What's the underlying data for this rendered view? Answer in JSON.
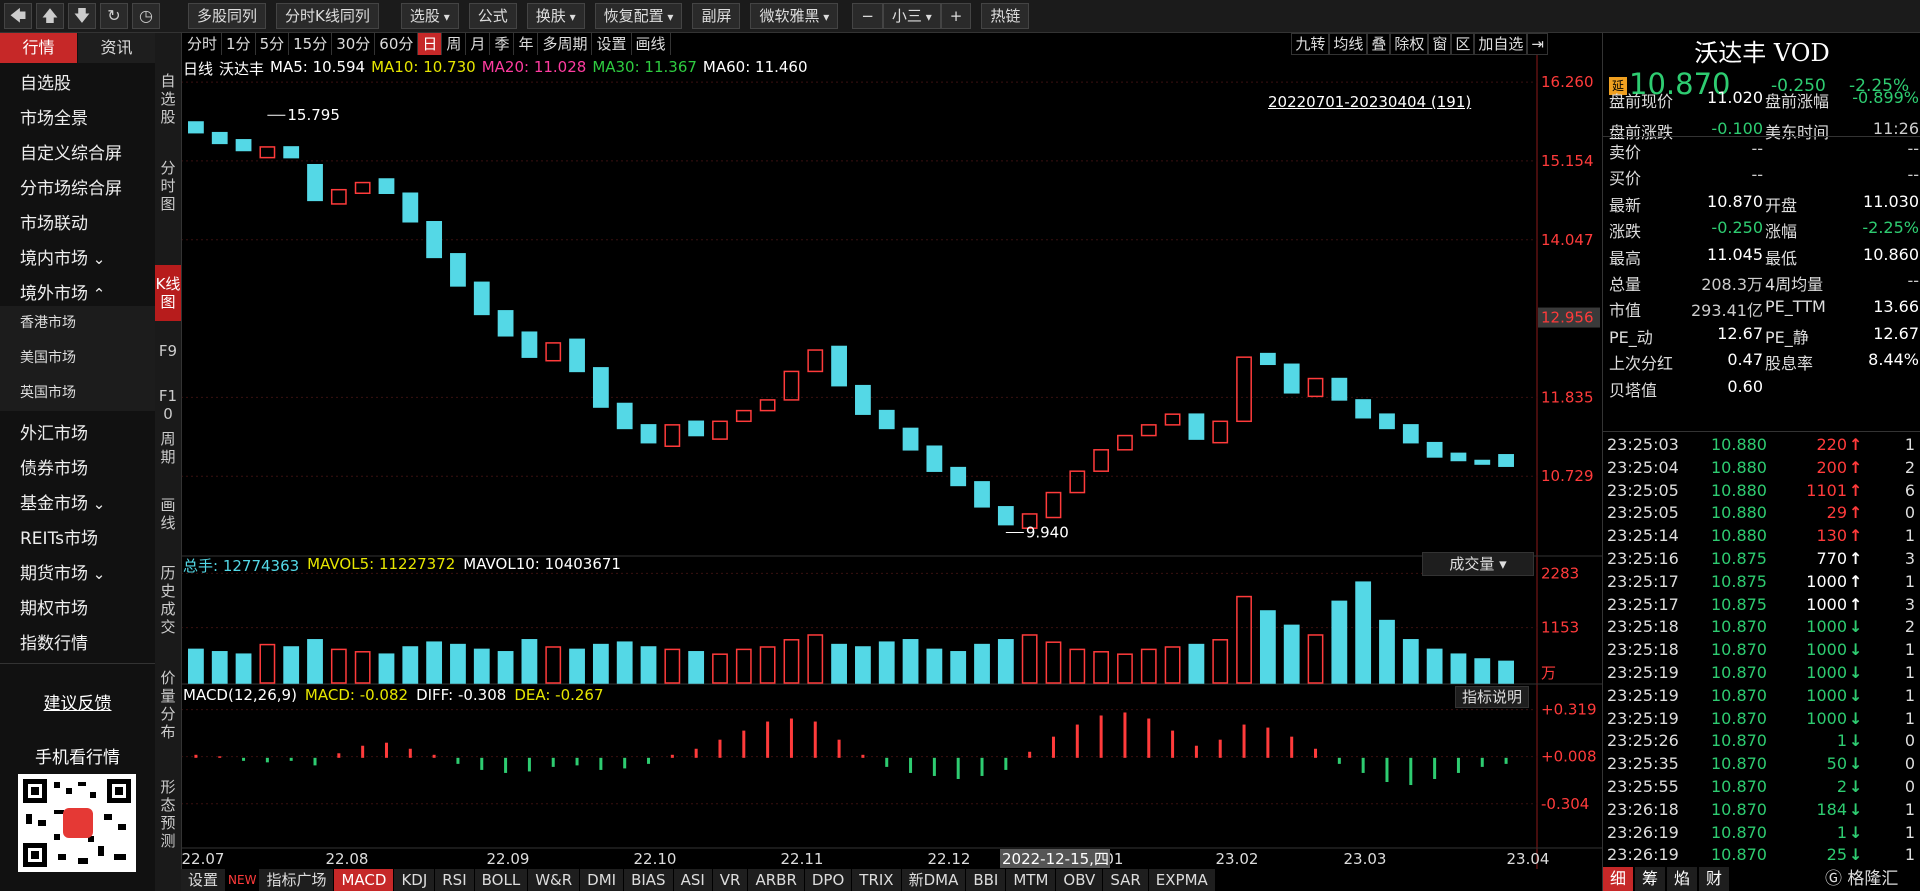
{
  "toolbar": [
    "多股同列",
    "分时K线同列",
    "选股",
    "公式",
    "换肤",
    "恢复配置",
    "副屏",
    "微软雅黑",
    "小三",
    "热链"
  ],
  "nav_tabs": [
    "行情",
    "资讯"
  ],
  "nav": [
    "自选股",
    "市场全景",
    "自定义综合屏",
    "分市场综合屏",
    "市场联动",
    "境内市场",
    "境外市场",
    "香港市场",
    "美国市场",
    "英国市场",
    "外汇市场",
    "债券市场",
    "基金市场",
    "REITs市场",
    "期货市场",
    "期权市场",
    "指数行情"
  ],
  "feedback": "建议反馈",
  "mobile": "手机看行情",
  "side_tabs": [
    "自选股",
    "分时图",
    "K线图",
    "F9",
    "F10",
    "周期",
    "画线",
    "历史成交",
    "价量分布",
    "形态预测"
  ],
  "periods": [
    "分时",
    "1分",
    "5分",
    "15分",
    "30分",
    "60分",
    "日",
    "周",
    "月",
    "季",
    "年",
    "多周期",
    "设置",
    "画线"
  ],
  "tools": [
    "九转",
    "均线",
    "叠",
    "除权",
    "窗",
    "区",
    "加自选"
  ],
  "ma_legend": [
    {
      "text": "日线",
      "color": "#ffffff"
    },
    {
      "text": "沃达丰",
      "color": "#ffffff"
    },
    {
      "text": "MA5: 10.594",
      "color": "#ffffff"
    },
    {
      "text": "MA10: 10.730",
      "color": "#e6e600"
    },
    {
      "text": "MA20: 11.028",
      "color": "#ff3ca0"
    },
    {
      "text": "MA30: 11.367",
      "color": "#2ecc40"
    },
    {
      "text": "MA60: 11.460",
      "color": "#ffffff"
    }
  ],
  "range_label": "20220701-20230404 (191)",
  "kline": {
    "type": "candlestick",
    "ylim": [
      9.68,
      16.64
    ],
    "yticks": [
      10.729,
      11.835,
      14.047,
      15.154,
      {
        "value": 16.26,
        "label": "16.260"
      }
    ],
    "cursor_price": 12.956,
    "high": 15.795,
    "low": {
      "value": 9.94,
      "label": "9.940"
    },
    "up_color": "#ff3b3b",
    "down_color": "#54d8e6",
    "open": [
      15.7,
      15.55,
      15.45,
      15.2,
      15.35,
      15.1,
      14.55,
      14.7,
      14.9,
      14.7,
      14.3,
      13.85,
      13.45,
      13.05,
      12.75,
      12.35,
      12.65,
      12.25,
      11.75,
      11.45,
      11.15,
      11.5,
      11.25,
      11.5,
      11.65,
      11.8,
      12.2,
      12.55,
      12.0,
      11.65,
      11.4,
      11.15,
      10.85,
      10.65,
      10.3,
      10.0,
      10.15,
      10.5,
      10.8,
      11.1,
      11.3,
      11.45,
      11.6,
      11.2,
      11.5,
      12.45,
      12.3,
      11.85,
      12.1,
      11.8,
      11.6,
      11.45,
      11.2,
      11.05,
      10.95,
      11.03
    ],
    "close": [
      15.55,
      15.4,
      15.3,
      15.35,
      15.2,
      14.6,
      14.75,
      14.85,
      14.7,
      14.3,
      13.8,
      13.4,
      13.0,
      12.7,
      12.4,
      12.6,
      12.2,
      11.7,
      11.4,
      11.2,
      11.45,
      11.3,
      11.5,
      11.65,
      11.8,
      12.2,
      12.5,
      12.0,
      11.6,
      11.4,
      11.1,
      10.8,
      10.6,
      10.3,
      10.05,
      10.2,
      10.5,
      10.8,
      11.1,
      11.3,
      11.45,
      11.6,
      11.25,
      11.5,
      12.4,
      12.3,
      11.9,
      12.1,
      11.8,
      11.55,
      11.4,
      11.2,
      11.0,
      10.95,
      10.9,
      10.87
    ],
    "x_labels": [
      "22.07",
      "22.08",
      "22.09",
      "22.10",
      "22.11",
      "22.12",
      "23.01",
      "23.02",
      "23.03",
      "23.04"
    ],
    "crosshair_date": "2022-12-15,四"
  },
  "volume": {
    "type": "bar",
    "header": [
      {
        "text": "总手: 12774363",
        "color": "#54d8e6"
      },
      {
        "text": "MAVOL5: 11227372",
        "color": "#e6e600"
      },
      {
        "text": "MAVOL10: 10403671",
        "color": "#ffffff"
      }
    ],
    "selector": "成交量",
    "unit": "万",
    "ylim": [
      0,
      2520
    ],
    "yticks": [
      1153,
      2283
    ],
    "values": [
      700,
      650,
      600,
      800,
      750,
      900,
      700,
      650,
      600,
      750,
      850,
      800,
      700,
      650,
      900,
      750,
      700,
      800,
      850,
      750,
      700,
      650,
      600,
      700,
      750,
      900,
      1000,
      800,
      750,
      850,
      900,
      700,
      650,
      800,
      900,
      1000,
      850,
      700,
      650,
      600,
      700,
      750,
      800,
      900,
      1800,
      1500,
      1200,
      1000,
      1700,
      2100,
      1300,
      900,
      700,
      600,
      500,
      450
    ]
  },
  "macd": {
    "type": "bar",
    "header": [
      {
        "text": "MACD(12,26,9)",
        "color": "#ffffff"
      },
      {
        "text": "MACD: -0.082",
        "color": "#e6e600"
      },
      {
        "text": "DIFF: -0.308",
        "color": "#ffffff"
      },
      {
        "text": "DEA: -0.267",
        "color": "#e6e600"
      }
    ],
    "help": "指标说明",
    "ylim": [
      -0.59,
      0.409
    ],
    "yticks": [
      -0.304,
      {
        "value": 0.008,
        "label": "+0.008"
      },
      {
        "value": 0.319,
        "label": "+0.319"
      }
    ],
    "up_color": "#ff3b3b",
    "down_color": "#2ecc71",
    "values": [
      0.02,
      0.01,
      -0.02,
      -0.03,
      -0.02,
      -0.05,
      0.03,
      0.08,
      0.1,
      0.06,
      0.02,
      -0.04,
      -0.08,
      -0.1,
      -0.09,
      -0.06,
      -0.05,
      -0.08,
      -0.07,
      -0.04,
      0.02,
      0.06,
      0.12,
      0.18,
      0.24,
      0.26,
      0.24,
      0.12,
      0.02,
      -0.06,
      -0.1,
      -0.12,
      -0.14,
      -0.12,
      -0.08,
      0.04,
      0.14,
      0.22,
      0.28,
      0.3,
      0.26,
      0.18,
      0.08,
      0.12,
      0.22,
      0.2,
      0.14,
      0.06,
      -0.04,
      -0.1,
      -0.16,
      -0.18,
      -0.14,
      -0.1,
      -0.06,
      -0.04
    ]
  },
  "indicator_tabs": [
    "设置",
    "NEW",
    "指标广场",
    "MACD",
    "KDJ",
    "RSI",
    "BOLL",
    "W&R",
    "DMI",
    "BIAS",
    "ASI",
    "VR",
    "ARBR",
    "DPO",
    "TRIX",
    "新DMA",
    "BBI",
    "MTM",
    "OBV",
    "SAR",
    "EXPMA"
  ],
  "quote": {
    "name": "沃达丰 VOD",
    "badge": "延",
    "price": "10.870",
    "change": "-0.250",
    "change_pct": "-2.25%",
    "rows": [
      [
        "盘前现价",
        "11.020",
        "盘前涨幅",
        "-0.899%"
      ],
      [
        "盘前涨跌",
        "-0.100",
        "美东时间",
        "11:26"
      ],
      [
        "卖价",
        "--",
        "",
        "--"
      ],
      [
        "买价",
        "--",
        "",
        "--"
      ],
      [
        "最新",
        "10.870",
        "开盘",
        "11.030"
      ],
      [
        "涨跌",
        "-0.250",
        "涨幅",
        "-2.25%"
      ],
      [
        "最高",
        "11.045",
        "最低",
        "10.860"
      ],
      [
        "总量",
        "208.3万",
        "4周均量",
        "--"
      ],
      [
        "市值",
        "293.41亿",
        "PE_TTM",
        "13.66"
      ],
      [
        "PE_动",
        "12.67",
        "PE_静",
        "12.67"
      ],
      [
        "上次分红",
        "0.47",
        "股息率",
        "8.44%"
      ],
      [
        "贝塔值",
        "0.60"
      ]
    ]
  },
  "trades": [
    {
      "time": "23:25:03",
      "price": "10.880",
      "volume": "220",
      "dir": "up",
      "count": "1"
    },
    {
      "time": "23:25:04",
      "price": "10.880",
      "volume": "200",
      "dir": "up",
      "count": "2"
    },
    {
      "time": "23:25:05",
      "price": "10.880",
      "volume": "1101",
      "dir": "up",
      "count": "6"
    },
    {
      "time": "23:25:05",
      "price": "10.880",
      "volume": "29",
      "dir": "up",
      "count": "0"
    },
    {
      "time": "23:25:14",
      "price": "10.880",
      "volume": "130",
      "dir": "up",
      "count": "1"
    },
    {
      "time": "23:25:16",
      "price": "10.875",
      "volume": "770",
      "dir": "flat",
      "count": "3"
    },
    {
      "time": "23:25:17",
      "price": "10.875",
      "volume": "1000",
      "dir": "flat",
      "count": "1"
    },
    {
      "time": "23:25:17",
      "price": "10.875",
      "volume": "1000",
      "dir": "flat",
      "count": "3"
    },
    {
      "time": "23:25:18",
      "price": "10.870",
      "volume": "1000",
      "dir": "down",
      "count": "2"
    },
    {
      "time": "23:25:18",
      "price": "10.870",
      "volume": "1000",
      "dir": "down",
      "count": "1"
    },
    {
      "time": "23:25:19",
      "price": "10.870",
      "volume": "1000",
      "dir": "down",
      "count": "1"
    },
    {
      "time": "23:25:19",
      "price": "10.870",
      "volume": "1000",
      "dir": "down",
      "count": "1"
    },
    {
      "time": "23:25:19",
      "price": "10.870",
      "volume": "1000",
      "dir": "down",
      "count": "1"
    },
    {
      "time": "23:25:26",
      "price": "10.870",
      "volume": "1",
      "dir": "down",
      "count": "0"
    },
    {
      "time": "23:25:35",
      "price": "10.870",
      "volume": "50",
      "dir": "down",
      "count": "0"
    },
    {
      "time": "23:25:55",
      "price": "10.870",
      "volume": "2",
      "dir": "down",
      "count": "0"
    },
    {
      "time": "23:26:18",
      "price": "10.870",
      "volume": "184",
      "dir": "down",
      "count": "1"
    },
    {
      "time": "23:26:19",
      "price": "10.870",
      "volume": "1",
      "dir": "down",
      "count": "1"
    },
    {
      "time": "23:26:19",
      "price": "10.870",
      "volume": "25",
      "dir": "down",
      "count": "1"
    }
  ],
  "panel_tabs": [
    "细",
    "筹",
    "焰",
    "财"
  ],
  "logo": "格隆汇"
}
